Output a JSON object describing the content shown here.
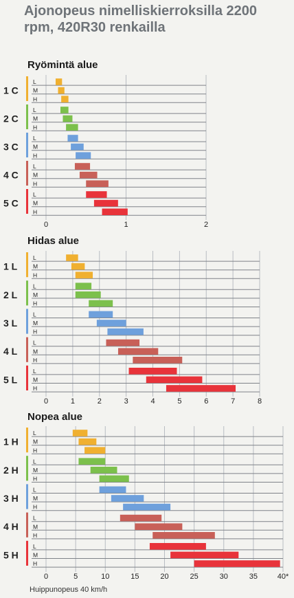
{
  "title": "Ajonopeus nimelliskierroksilla 2200 rpm, 420R30 renkailla",
  "footnote": "Huippunopeus 40 km/h",
  "row_labels": [
    "L",
    "M",
    "H"
  ],
  "colors": {
    "C": [
      "#f0b030",
      "#7cc04c",
      "#6ea0dc",
      "#c86058",
      "#e8333a"
    ],
    "L": [
      "#f0b030",
      "#7cc04c",
      "#6ea0dc",
      "#c86058",
      "#e8333a"
    ],
    "H": [
      "#f0b030",
      "#7cc04c",
      "#6ea0dc",
      "#c86058",
      "#e8333a"
    ]
  },
  "chart_data": [
    {
      "type": "bar",
      "title": "Ryömintä alue",
      "groups": [
        {
          "name": "1 C",
          "ranges": [
            [
              0.12,
              0.2
            ],
            [
              0.15,
              0.23
            ],
            [
              0.19,
              0.28
            ]
          ]
        },
        {
          "name": "2 C",
          "ranges": [
            [
              0.18,
              0.28
            ],
            [
              0.21,
              0.33
            ],
            [
              0.25,
              0.4
            ]
          ]
        },
        {
          "name": "3 C",
          "ranges": [
            [
              0.27,
              0.4
            ],
            [
              0.31,
              0.47
            ],
            [
              0.37,
              0.56
            ]
          ]
        },
        {
          "name": "4 C",
          "ranges": [
            [
              0.36,
              0.55
            ],
            [
              0.42,
              0.64
            ],
            [
              0.5,
              0.78
            ]
          ]
        },
        {
          "name": "5 C",
          "ranges": [
            [
              0.5,
              0.76
            ],
            [
              0.6,
              0.9
            ],
            [
              0.7,
              1.02
            ]
          ]
        }
      ],
      "xlim": [
        0,
        2
      ],
      "xticks": [
        "0",
        "1",
        "2"
      ]
    },
    {
      "type": "bar",
      "title": "Hidas alue",
      "groups": [
        {
          "name": "1 L",
          "ranges": [
            [
              0.75,
              1.2
            ],
            [
              0.95,
              1.45
            ],
            [
              1.1,
              1.75
            ]
          ]
        },
        {
          "name": "2 L",
          "ranges": [
            [
              1.1,
              1.7
            ],
            [
              1.1,
              2.05
            ],
            [
              1.6,
              2.5
            ]
          ]
        },
        {
          "name": "3 L",
          "ranges": [
            [
              1.6,
              2.5
            ],
            [
              1.9,
              3.0
            ],
            [
              2.3,
              3.65
            ]
          ]
        },
        {
          "name": "4 L",
          "ranges": [
            [
              2.25,
              3.5
            ],
            [
              2.7,
              4.2
            ],
            [
              3.25,
              5.1
            ]
          ]
        },
        {
          "name": "5 L",
          "ranges": [
            [
              3.1,
              4.9
            ],
            [
              3.75,
              5.85
            ],
            [
              4.5,
              7.1
            ]
          ]
        }
      ],
      "xlim": [
        0,
        8
      ],
      "xticks": [
        "0",
        "1",
        "2",
        "3",
        "4",
        "5",
        "6",
        "7",
        "8"
      ]
    },
    {
      "type": "bar",
      "title": "Nopea alue",
      "groups": [
        {
          "name": "1 H",
          "ranges": [
            [
              4.5,
              7
            ],
            [
              5.5,
              8.5
            ],
            [
              6.5,
              10
            ]
          ]
        },
        {
          "name": "2 H",
          "ranges": [
            [
              5.5,
              10
            ],
            [
              7.5,
              12
            ],
            [
              9,
              14
            ]
          ]
        },
        {
          "name": "3 H",
          "ranges": [
            [
              9,
              13.5
            ],
            [
              11,
              16.5
            ],
            [
              13,
              21
            ]
          ]
        },
        {
          "name": "4 H",
          "ranges": [
            [
              12.5,
              19.5
            ],
            [
              15,
              23
            ],
            [
              18,
              28.5
            ]
          ]
        },
        {
          "name": "5 H",
          "ranges": [
            [
              17.5,
              27
            ],
            [
              21,
              32.5
            ],
            [
              25,
              39.5
            ]
          ]
        }
      ],
      "xlim": [
        0,
        40
      ],
      "xticks": [
        "0",
        "5",
        "10",
        "15",
        "20",
        "25",
        "30",
        "35",
        "40*"
      ]
    }
  ]
}
